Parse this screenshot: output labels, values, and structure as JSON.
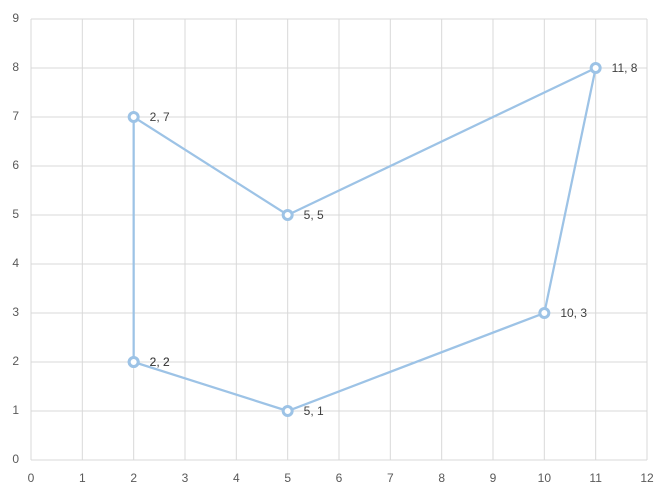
{
  "chart_data": {
    "type": "scatter",
    "x": [
      2,
      2,
      5,
      11,
      10,
      5,
      2
    ],
    "series": [
      {
        "color": "#9dc3e6",
        "values": [
          2,
          7,
          5,
          8,
          3,
          1,
          2
        ],
        "value_labels": [
          "2, 2",
          "2, 7",
          "5, 5",
          "11, 8",
          "10, 3",
          "5, 1",
          "2, 2"
        ]
      }
    ],
    "xlim": [
      0,
      12
    ],
    "xticks": [
      0,
      1,
      2,
      3,
      4,
      5,
      6,
      7,
      8,
      9,
      10,
      11,
      12
    ],
    "ylim": [
      0,
      9
    ],
    "yticks": [
      0,
      1,
      2,
      3,
      4,
      5,
      6,
      7,
      8,
      9
    ],
    "grid": true,
    "lines": true
  }
}
